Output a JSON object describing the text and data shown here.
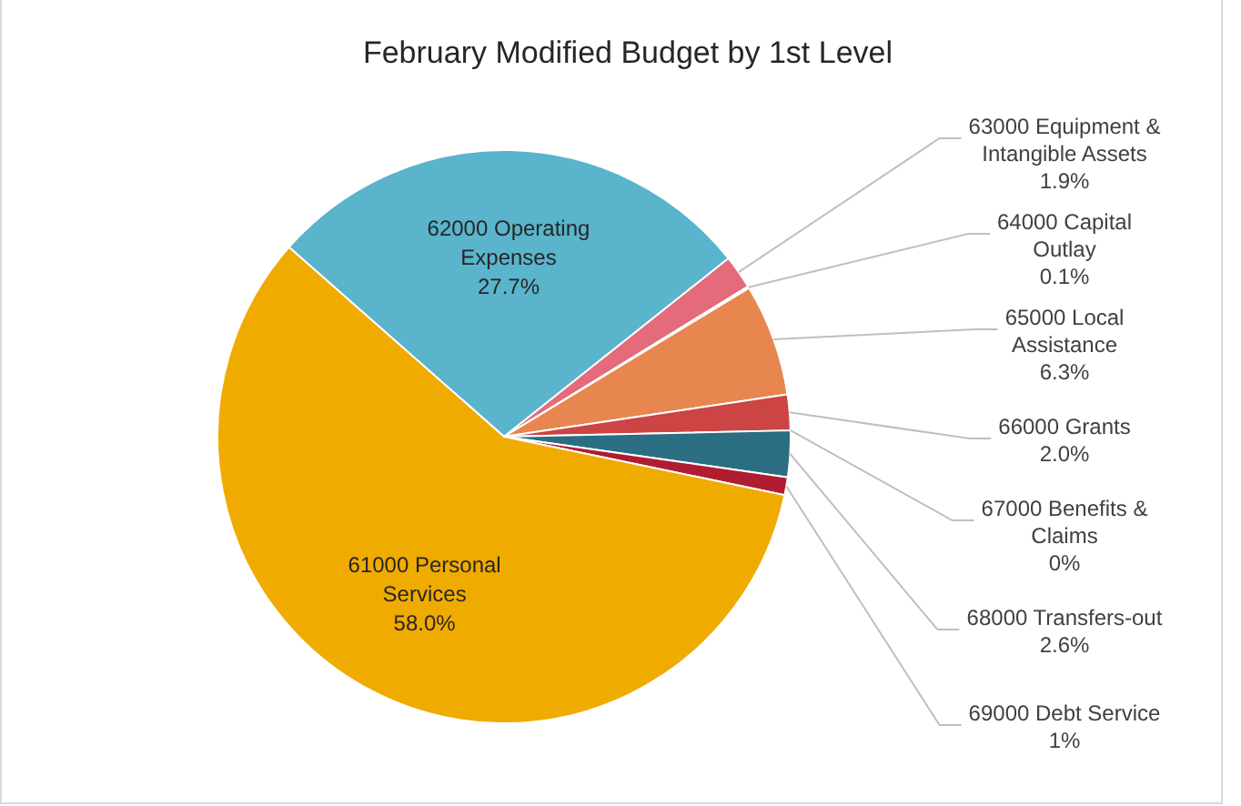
{
  "chart_data": {
    "type": "pie",
    "title": "February Modified Budget by 1st Level",
    "categories": [
      "62000 Operating Expenses",
      "63000 Equipment & Intangible Assets",
      "64000 Capital Outlay",
      "65000 Local Assistance",
      "66000 Grants",
      "67000 Benefits & Claims",
      "68000 Transfers-out",
      "69000 Debt Service",
      "61000 Personal Services"
    ],
    "values": [
      27.7,
      1.9,
      0.1,
      6.3,
      2.0,
      0,
      2.6,
      1,
      58.0
    ],
    "value_labels": [
      "27.7%",
      "1.9%",
      "0.1%",
      "6.3%",
      "2.0%",
      "0%",
      "2.6%",
      "1%",
      "58.0%"
    ],
    "colors": [
      "#5ab4cc",
      "#e46b7c",
      "#a5a5a5",
      "#e8864f",
      "#cc4444",
      "#c8a02a",
      "#2b6e82",
      "#b01c30",
      "#f0ab00"
    ],
    "legend": false
  }
}
